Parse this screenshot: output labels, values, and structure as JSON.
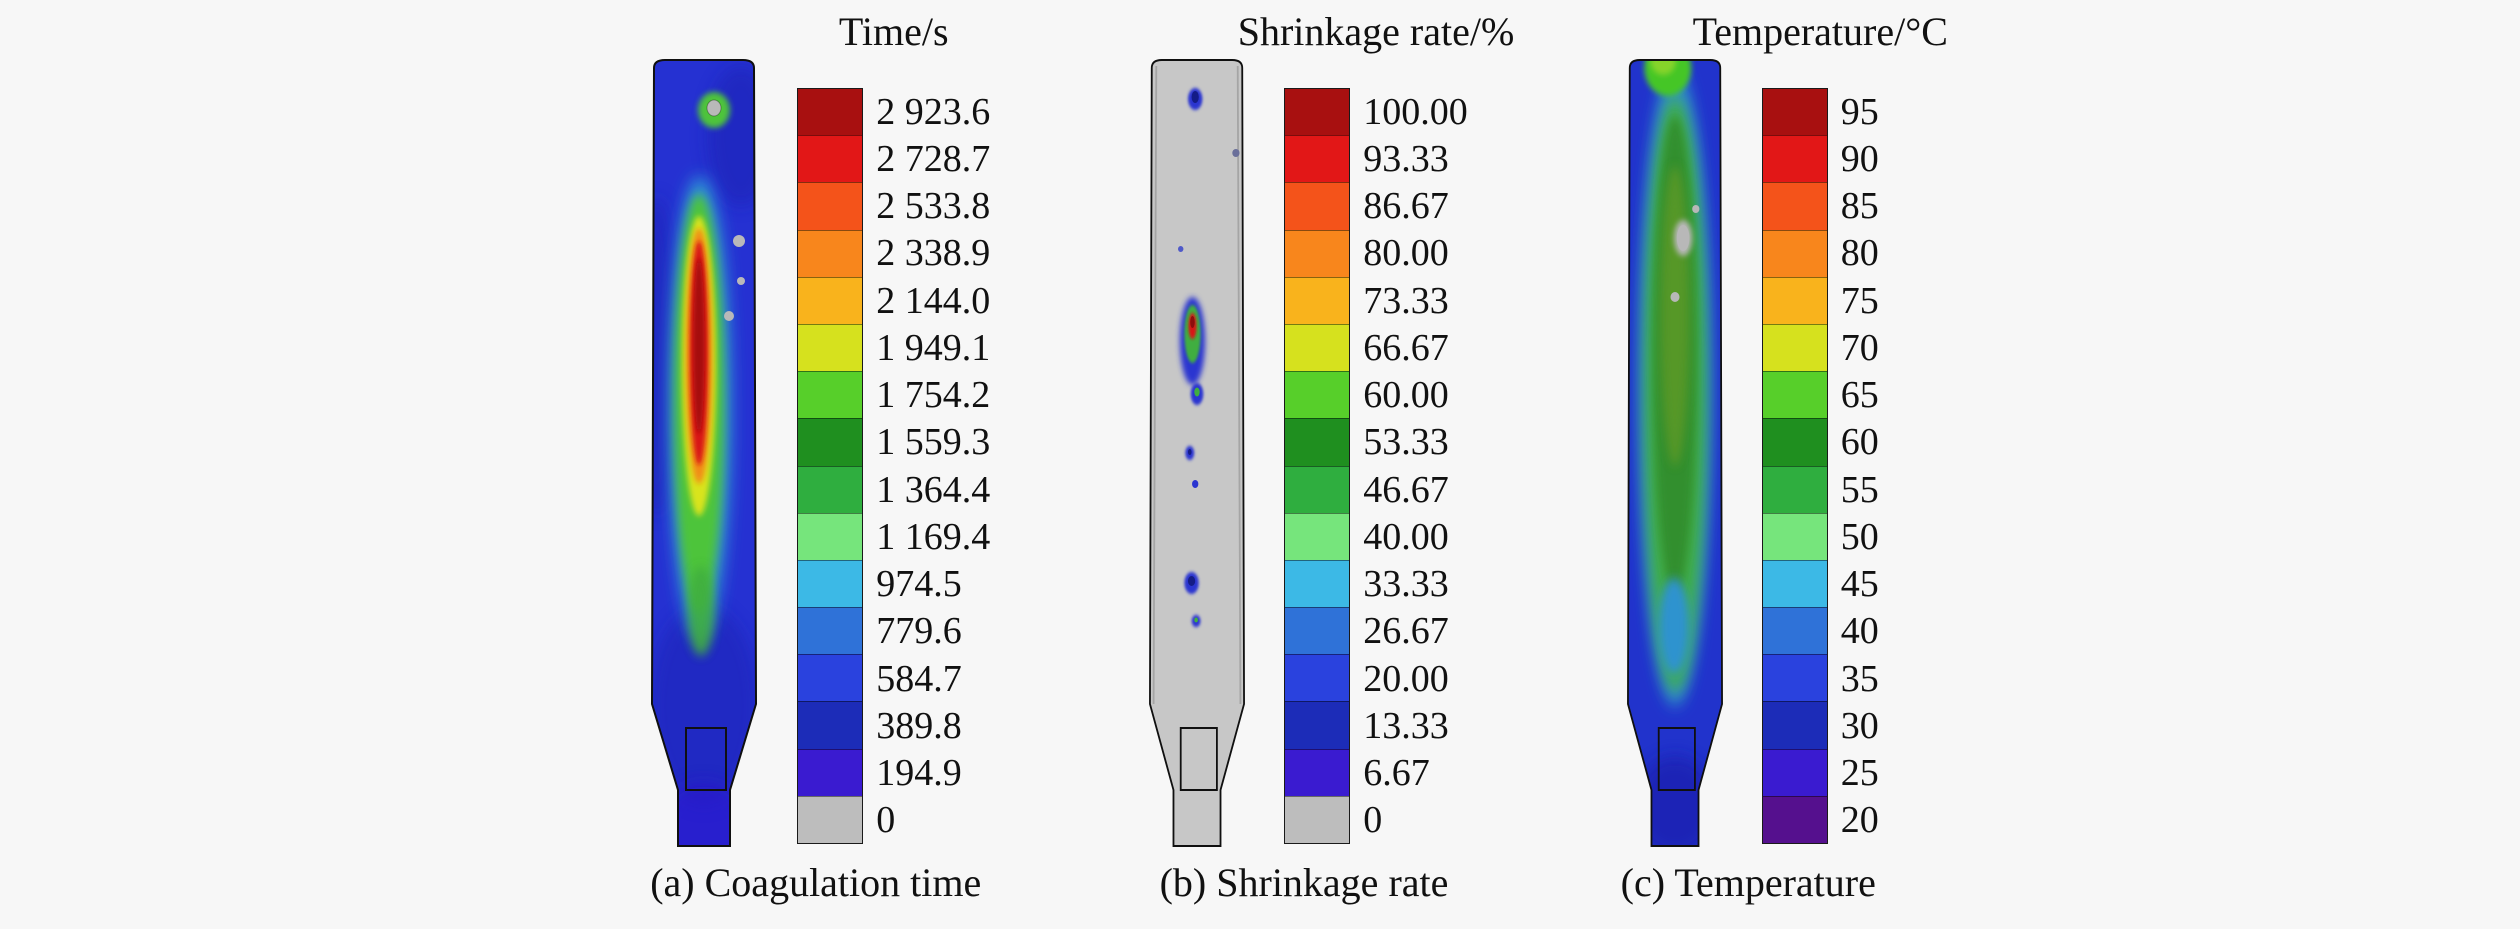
{
  "figure": {
    "background_color": "#f7f7f7",
    "text_color": "#111111"
  },
  "panels": [
    {
      "id": "coagulation-time",
      "title": "Time/s",
      "caption": "(a) Coagulation time",
      "ticks": [
        "2 923.6",
        "2 728.7",
        "2 533.8",
        "2 338.9",
        "2 144.0",
        "1 949.1",
        "1 754.2",
        "1 559.3",
        "1 364.4",
        "1 169.4",
        "974.5",
        "779.6",
        "584.7",
        "389.8",
        "194.9",
        "0"
      ],
      "colors": [
        "#a81010",
        "#e21717",
        "#f4531a",
        "#f8861c",
        "#f9b31c",
        "#d6e11e",
        "#57cf2a",
        "#1f8f1f",
        "#2fae3f",
        "#76e57c",
        "#3cb9e6",
        "#2f72d8",
        "#2a42de",
        "#1c2cb8",
        "#3a1bd0",
        "#bdbdbd"
      ]
    },
    {
      "id": "shrinkage-rate",
      "title": "Shrinkage rate/%",
      "caption": "(b) Shrinkage rate",
      "ticks": [
        "100.00",
        "93.33",
        "86.67",
        "80.00",
        "73.33",
        "66.67",
        "60.00",
        "53.33",
        "46.67",
        "40.00",
        "33.33",
        "26.67",
        "20.00",
        "13.33",
        "6.67",
        "0"
      ],
      "colors": [
        "#a81010",
        "#e21717",
        "#f4531a",
        "#f8861c",
        "#f9b31c",
        "#d6e11e",
        "#57cf2a",
        "#1f8f1f",
        "#2fae3f",
        "#76e57c",
        "#3cb9e6",
        "#2f72d8",
        "#2a42de",
        "#1c2cb8",
        "#3a1bd0",
        "#bdbdbd"
      ]
    },
    {
      "id": "temperature",
      "title": "Temperature/°C",
      "caption": "(c) Temperature",
      "ticks": [
        "95",
        "90",
        "85",
        "80",
        "75",
        "70",
        "65",
        "60",
        "55",
        "50",
        "45",
        "40",
        "35",
        "30",
        "25",
        "20"
      ],
      "colors": [
        "#a81010",
        "#e21717",
        "#f4531a",
        "#f8861c",
        "#f9b31c",
        "#d6e11e",
        "#57cf2a",
        "#1f8f1f",
        "#2fae3f",
        "#76e57c",
        "#3cb9e6",
        "#2f72d8",
        "#2a42de",
        "#1c2cb8",
        "#3a1bd0",
        "#55108e"
      ]
    }
  ],
  "chart_data": [
    {
      "type": "heatmap",
      "panel": "a",
      "title": "Time/s",
      "caption": "(a) Coagulation time",
      "unit": "s",
      "range": [
        0,
        2923.6
      ],
      "colorbar_ticks": [
        2923.6,
        2728.7,
        2533.8,
        2338.9,
        2144.0,
        1949.1,
        1754.2,
        1559.3,
        1364.4,
        1169.4,
        974.5,
        779.6,
        584.7,
        389.8,
        194.9,
        0
      ],
      "legend_position": "right",
      "description": "Vessel cross-section contour of coagulation time: bulk mostly 200-1000 s (blue); elongated central core up to ~2900 s (red) ringed by orange, yellow and green; small green spot with grey centre near the top; scattered grey specks = 0 s; tapered foot ~200-400 s."
    },
    {
      "type": "heatmap",
      "panel": "b",
      "title": "Shrinkage rate/%",
      "caption": "(b) Shrinkage rate",
      "unit": "%",
      "range": [
        0,
        100
      ],
      "colorbar_ticks": [
        100.0,
        93.33,
        86.67,
        80.0,
        73.33,
        66.67,
        60.0,
        53.33,
        46.67,
        40.0,
        33.33,
        26.67,
        20.0,
        13.33,
        6.67,
        0
      ],
      "legend_position": "right",
      "description": "Vessel mostly 0% shrinkage (grey) with isolated pockets along the centreline; largest pocket near mid-height reaching ~100% (red core with green and blue rings); several small blue spots (~7-30%) above and below it."
    },
    {
      "type": "heatmap",
      "panel": "c",
      "title": "Temperature/°C",
      "caption": "(c) Temperature",
      "unit": "°C",
      "range": [
        20,
        95
      ],
      "colorbar_ticks": [
        95,
        90,
        85,
        80,
        75,
        70,
        65,
        60,
        55,
        50,
        45,
        40,
        35,
        30,
        25,
        20
      ],
      "legend_position": "right",
      "description": "Walls and bottom ~30-45 °C (blue); broad central column ~55-65 °C (green) from the top down to about three-quarters height; brighter green ~70 °C at the top surface; small grey voids in the upper-middle region; tapered foot ~25-35 °C."
    }
  ]
}
